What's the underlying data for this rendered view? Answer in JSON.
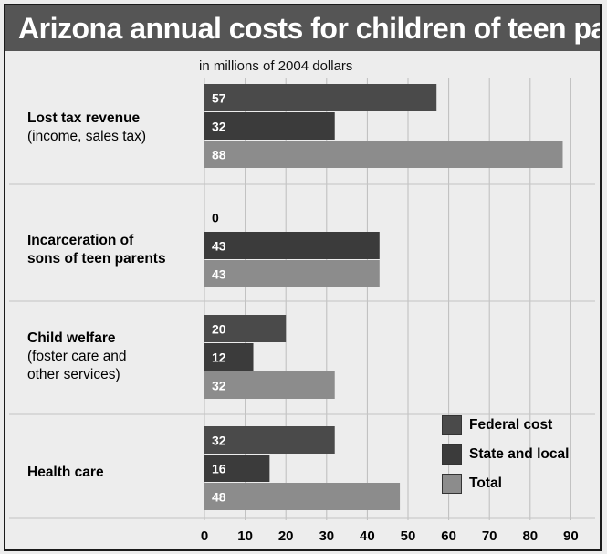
{
  "title": "Arizona annual costs for children of teen parents",
  "subtitle": "in millions of 2004 dollars",
  "categories": [
    {
      "main": "Lost tax revenue",
      "sub": [
        "(income, sales tax)"
      ]
    },
    {
      "main": "Incarceration of",
      "sub_bold": "sons of teen parents",
      "sub": []
    },
    {
      "main": "Child welfare",
      "sub": [
        "(foster care and",
        "other services)"
      ]
    },
    {
      "main": "Health care",
      "sub": []
    }
  ],
  "legend": [
    {
      "label": "Federal cost",
      "color": "#4a4a4a"
    },
    {
      "label": "State and local",
      "color": "#3b3b3b"
    },
    {
      "label": "Total",
      "color": "#8c8c8c"
    }
  ],
  "chart_data": {
    "type": "bar",
    "orientation": "horizontal",
    "title": "Arizona annual costs for children of teen parents",
    "subtitle": "in millions of 2004 dollars",
    "categories": [
      "Lost tax revenue (income, sales tax)",
      "Incarceration of sons of teen parents",
      "Child welfare (foster care and other services)",
      "Health care"
    ],
    "series": [
      {
        "name": "Federal cost",
        "values": [
          57,
          0,
          20,
          32
        ],
        "color": "#4a4a4a"
      },
      {
        "name": "State and local",
        "values": [
          32,
          43,
          12,
          16
        ],
        "color": "#3b3b3b"
      },
      {
        "name": "Total",
        "values": [
          88,
          43,
          32,
          48
        ],
        "color": "#8c8c8c"
      }
    ],
    "xlim": [
      0,
      90
    ],
    "xticks": [
      0,
      10,
      20,
      30,
      40,
      50,
      60,
      70,
      80,
      90
    ],
    "grid": true,
    "legend_position": "bottom-right"
  }
}
